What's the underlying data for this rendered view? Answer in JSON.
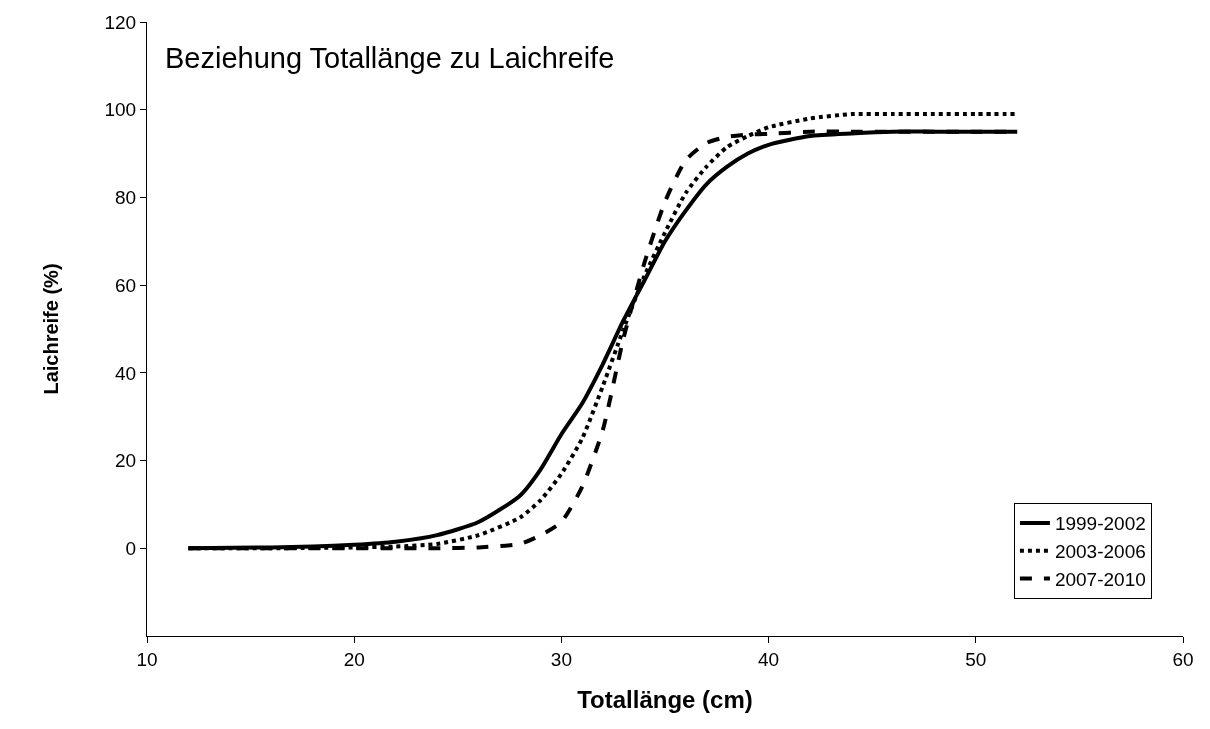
{
  "chart_data": {
    "type": "line",
    "title": "Beziehung Totallänge zu Laichreife",
    "xlabel": "Totallänge (cm)",
    "ylabel": "Laichreife (%)",
    "x": [
      12,
      16,
      18,
      20,
      22,
      24,
      26,
      28,
      29,
      30,
      31,
      32,
      33,
      34,
      35,
      36,
      37,
      38,
      39,
      40,
      42,
      44,
      46,
      48,
      50,
      52
    ],
    "series": [
      {
        "name": "1999-2002",
        "color": "#000000",
        "line_style": "solid",
        "values": [
          0,
          0.2,
          0.4,
          0.8,
          1.5,
          3,
          6,
          12,
          18,
          26,
          33,
          42,
          52,
          61,
          70,
          77,
          83,
          87,
          90,
          92,
          94,
          94.6,
          95,
          95,
          95,
          95
        ]
      },
      {
        "name": "2003-2006",
        "color": "#000000",
        "line_style": "dotted",
        "values": [
          0,
          0,
          0.1,
          0.2,
          0.4,
          1,
          3,
          7,
          11,
          17,
          25,
          37,
          50,
          62,
          72,
          81,
          87,
          91.5,
          94,
          96,
          98,
          99,
          99,
          99,
          99,
          99
        ]
      },
      {
        "name": "2007-2010",
        "color": "#000000",
        "line_style": "dashed",
        "values": [
          0,
          0,
          0,
          0,
          0,
          0,
          0.2,
          1,
          3,
          6,
          14,
          27,
          48,
          65,
          79,
          88.5,
          92.4,
          93.8,
          94.3,
          94.5,
          95,
          95,
          95,
          95,
          95,
          95
        ]
      }
    ],
    "xlim": [
      10,
      60
    ],
    "xticks": [
      10,
      20,
      30,
      40,
      50,
      60
    ],
    "ylim": [
      -20,
      120
    ],
    "yticks": [
      0,
      20,
      40,
      60,
      80,
      100,
      120
    ],
    "legend": "bottom right",
    "marker": "none"
  }
}
